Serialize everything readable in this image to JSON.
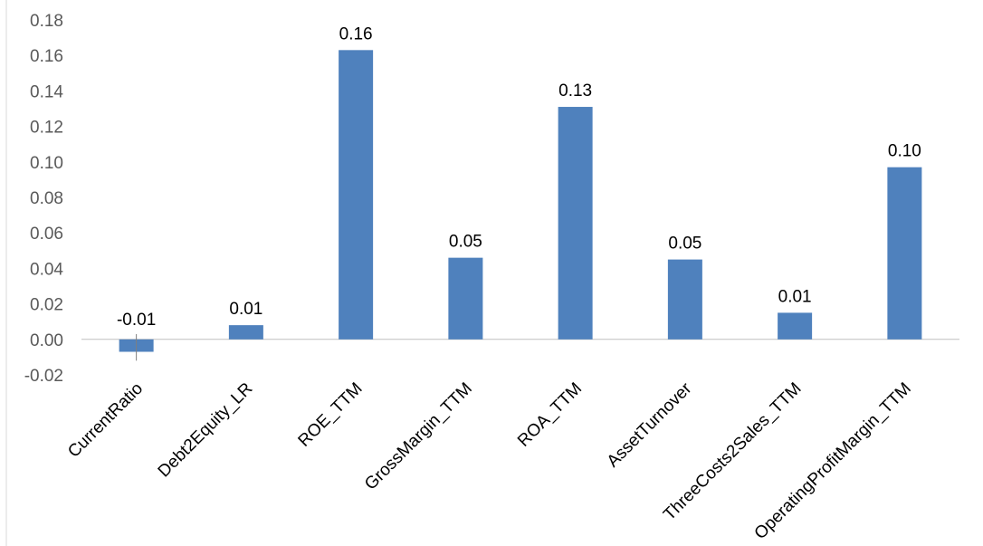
{
  "chart_data": {
    "type": "bar",
    "title": "",
    "xlabel": "",
    "ylabel": "",
    "categories": [
      "CurrentRatio",
      "Debt2Equity_LR",
      "ROE_TTM",
      "GrossMargin_TTM",
      "ROA_TTM",
      "AssetTurnover",
      "ThreeCosts2Sales_TTM",
      "OperatingProfitMargin_TTM"
    ],
    "values": [
      -0.007,
      0.008,
      0.163,
      0.046,
      0.131,
      0.045,
      0.015,
      0.097
    ],
    "data_labels": [
      "-0.01",
      "0.01",
      "0.16",
      "0.05",
      "0.13",
      "0.05",
      "0.01",
      "0.10"
    ],
    "ylim": [
      -0.02,
      0.18
    ],
    "yticks": [
      "0.18",
      "0.16",
      "0.14",
      "0.12",
      "0.10",
      "0.08",
      "0.06",
      "0.04",
      "0.02",
      "0.00",
      "-0.02"
    ],
    "ytick_values": [
      0.18,
      0.16,
      0.14,
      0.12,
      0.1,
      0.08,
      0.06,
      0.04,
      0.02,
      0.0,
      -0.02
    ],
    "grid": false,
    "legend": "none",
    "bar_color": "#4f81bd"
  }
}
